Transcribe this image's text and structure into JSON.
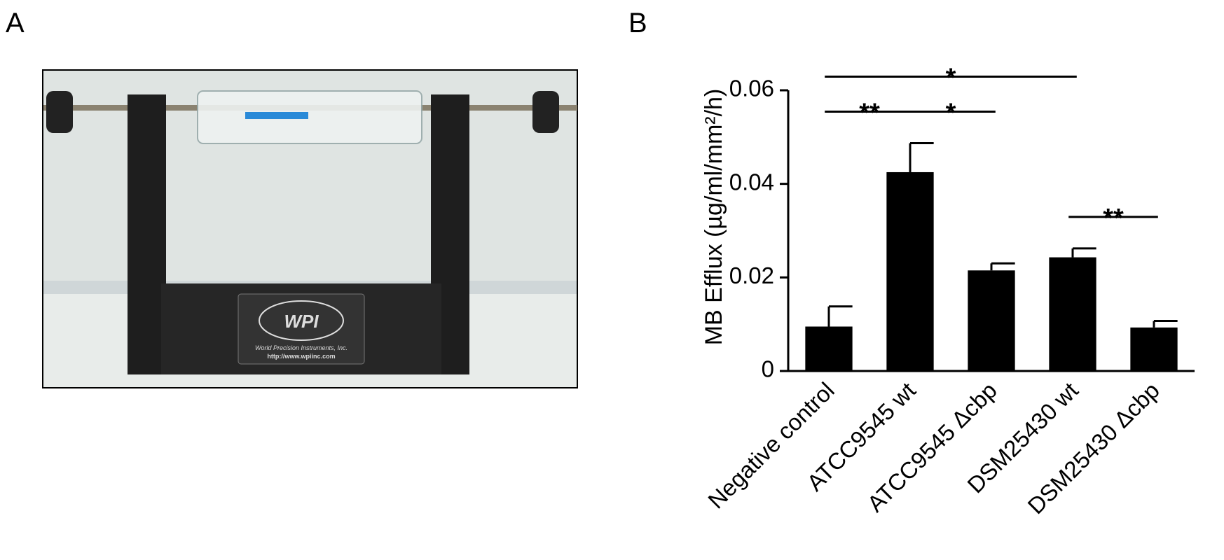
{
  "panel_a": {
    "label": "A",
    "photo_texts": [
      "WPI",
      "World Precision Instruments, Inc.",
      "http://www.wpiinc.com"
    ]
  },
  "chart_data": {
    "type": "bar",
    "panel_label": "B",
    "y_label": "MB Efflux (µg/ml/mm²/h)",
    "categories": [
      "Negative control",
      "ATCC9545 wt",
      "ATCC9545 Δcbp",
      "DSM25430 wt",
      "DSM25430 Δcbp"
    ],
    "values": [
      0.0095,
      0.0425,
      0.0215,
      0.0243,
      0.0093
    ],
    "errors": [
      0.0043,
      0.0062,
      0.0015,
      0.0019,
      0.0014
    ],
    "color": "#000000",
    "ylim": [
      0,
      0.06
    ],
    "yticks": [
      0,
      0.02,
      0.04,
      0.06
    ],
    "significance": [
      {
        "between": [
          "Negative control",
          "ATCC9545 wt"
        ],
        "label": "**"
      },
      {
        "between": [
          "ATCC9545 wt",
          "ATCC9545 Δcbp"
        ],
        "label": "*"
      },
      {
        "between": [
          "DSM25430 wt",
          "DSM25430 Δcbp"
        ],
        "label": "**"
      },
      {
        "between": [
          "Negative control",
          "DSM25430 wt"
        ],
        "label": "*"
      }
    ]
  }
}
